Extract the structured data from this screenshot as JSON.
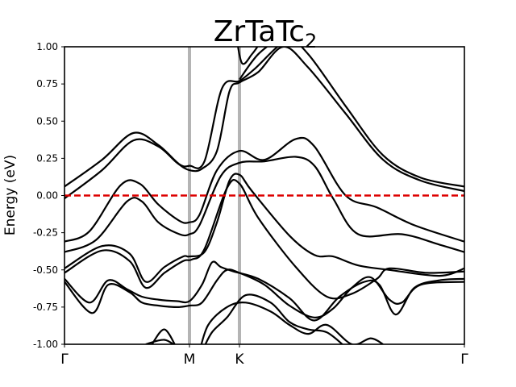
{
  "chart_data": {
    "type": "line",
    "title": "ZrTaTc",
    "title_subscript": "2",
    "ylabel": "Energy (eV)",
    "xlabel": "",
    "ylim": [
      -1.0,
      1.0
    ],
    "xlim": [
      0,
      3.2
    ],
    "yticks": [
      "-1.00",
      "-0.75",
      "-0.50",
      "-0.25",
      "0.00",
      "0.25",
      "0.50",
      "0.75",
      "1.00"
    ],
    "ytick_values": [
      -1.0,
      -0.75,
      -0.5,
      -0.25,
      0.0,
      0.25,
      0.5,
      0.75,
      1.0
    ],
    "kpoints": [
      {
        "label": "Γ",
        "x": 0.0
      },
      {
        "label": "M",
        "x": 1.0
      },
      {
        "label": "K",
        "x": 1.4
      },
      {
        "label": "Γ",
        "x": 3.2
      }
    ],
    "fermi_level": 0.0,
    "grid": false,
    "colors": {
      "bands": "#000000",
      "fermi": "#dd0000",
      "kline": "#b4b4b4"
    },
    "series": [
      {
        "values": [
          [
            0,
            0.06
          ],
          [
            0.3,
            0.24
          ],
          [
            0.55,
            0.42
          ],
          [
            0.75,
            0.34
          ],
          [
            0.92,
            0.21
          ],
          [
            1.0,
            0.2
          ],
          [
            1.12,
            0.23
          ],
          [
            1.26,
            0.72
          ],
          [
            1.4,
            0.77
          ],
          [
            1.52,
            0.85
          ],
          [
            1.78,
            1.04
          ],
          [
            1.95,
            0.95
          ],
          [
            2.25,
            0.6
          ],
          [
            2.55,
            0.27
          ],
          [
            2.85,
            0.12
          ],
          [
            3.2,
            0.06
          ]
        ]
      },
      {
        "values": [
          [
            0,
            -0.02
          ],
          [
            0.3,
            0.17
          ],
          [
            0.55,
            0.37
          ],
          [
            0.75,
            0.33
          ],
          [
            0.9,
            0.22
          ],
          [
            1.0,
            0.17
          ],
          [
            1.1,
            0.18
          ],
          [
            1.22,
            0.3
          ],
          [
            1.32,
            0.7
          ],
          [
            1.4,
            0.76
          ],
          [
            1.55,
            0.83
          ],
          [
            1.75,
            1.0
          ],
          [
            1.95,
            0.86
          ],
          [
            2.25,
            0.55
          ],
          [
            2.55,
            0.24
          ],
          [
            2.85,
            0.1
          ],
          [
            3.2,
            0.03
          ]
        ]
      },
      {
        "values": [
          [
            1.4,
            0.78
          ],
          [
            1.55,
            0.95
          ],
          [
            1.75,
            1.08
          ]
        ]
      },
      {
        "values": [
          [
            1.37,
            1.1
          ],
          [
            1.42,
            0.89
          ],
          [
            1.5,
            0.95
          ],
          [
            1.56,
            1.02
          ]
        ]
      },
      {
        "values": [
          [
            0,
            -0.31
          ],
          [
            0.2,
            -0.24
          ],
          [
            0.45,
            0.07
          ],
          [
            0.6,
            0.08
          ],
          [
            0.75,
            -0.06
          ],
          [
            0.92,
            -0.17
          ],
          [
            1.0,
            -0.18
          ],
          [
            1.08,
            -0.13
          ],
          [
            1.22,
            0.17
          ],
          [
            1.4,
            0.3
          ],
          [
            1.6,
            0.24
          ],
          [
            1.85,
            0.38
          ],
          [
            2.0,
            0.33
          ],
          [
            2.25,
            0.0
          ],
          [
            2.5,
            -0.08
          ],
          [
            2.8,
            -0.2
          ],
          [
            3.2,
            -0.31
          ]
        ]
      },
      {
        "values": [
          [
            0,
            -0.38
          ],
          [
            0.25,
            -0.3
          ],
          [
            0.5,
            -0.04
          ],
          [
            0.62,
            -0.04
          ],
          [
            0.75,
            -0.18
          ],
          [
            0.92,
            -0.26
          ],
          [
            1.0,
            -0.26
          ],
          [
            1.08,
            -0.2
          ],
          [
            1.25,
            0.13
          ],
          [
            1.4,
            0.22
          ],
          [
            1.6,
            0.23
          ],
          [
            1.85,
            0.26
          ],
          [
            2.0,
            0.2
          ],
          [
            2.15,
            -0.02
          ],
          [
            2.35,
            -0.26
          ],
          [
            2.7,
            -0.26
          ],
          [
            3.0,
            -0.33
          ],
          [
            3.2,
            -0.38
          ]
        ]
      },
      {
        "values": [
          [
            0,
            -0.49
          ],
          [
            0.3,
            -0.34
          ],
          [
            0.52,
            -0.39
          ],
          [
            0.65,
            -0.58
          ],
          [
            0.8,
            -0.48
          ],
          [
            0.95,
            -0.41
          ],
          [
            1.0,
            -0.41
          ],
          [
            1.12,
            -0.38
          ],
          [
            1.22,
            -0.18
          ],
          [
            1.32,
            0.1
          ],
          [
            1.4,
            0.14
          ],
          [
            1.5,
            0.03
          ],
          [
            1.8,
            -0.27
          ],
          [
            2.0,
            -0.4
          ],
          [
            2.15,
            -0.41
          ],
          [
            2.35,
            -0.47
          ],
          [
            2.6,
            -0.5
          ],
          [
            3.0,
            -0.54
          ],
          [
            3.2,
            -0.49
          ]
        ]
      },
      {
        "values": [
          [
            0,
            -0.52
          ],
          [
            0.3,
            -0.37
          ],
          [
            0.52,
            -0.44
          ],
          [
            0.65,
            -0.62
          ],
          [
            0.8,
            -0.52
          ],
          [
            0.95,
            -0.44
          ],
          [
            1.02,
            -0.43
          ],
          [
            1.12,
            -0.36
          ],
          [
            1.3,
            0.05
          ],
          [
            1.4,
            0.08
          ],
          [
            1.55,
            -0.15
          ],
          [
            1.85,
            -0.48
          ],
          [
            2.1,
            -0.68
          ],
          [
            2.3,
            -0.66
          ],
          [
            2.5,
            -0.56
          ],
          [
            2.6,
            -0.49
          ],
          [
            2.9,
            -0.52
          ],
          [
            3.2,
            -0.51
          ]
        ]
      },
      {
        "values": [
          [
            0,
            -0.56
          ],
          [
            0.2,
            -0.72
          ],
          [
            0.35,
            -0.57
          ],
          [
            0.5,
            -0.63
          ],
          [
            0.62,
            -0.68
          ],
          [
            0.75,
            -0.7
          ],
          [
            0.9,
            -0.71
          ],
          [
            1.0,
            -0.71
          ],
          [
            1.1,
            -0.6
          ],
          [
            1.18,
            -0.45
          ],
          [
            1.25,
            -0.48
          ],
          [
            1.35,
            -0.51
          ],
          [
            1.55,
            -0.56
          ],
          [
            1.8,
            -0.69
          ],
          [
            2.0,
            -0.84
          ],
          [
            2.2,
            -0.68
          ],
          [
            2.4,
            -0.58
          ],
          [
            2.52,
            -0.6
          ],
          [
            2.65,
            -0.8
          ],
          [
            2.8,
            -0.62
          ],
          [
            3.0,
            -0.57
          ],
          [
            3.2,
            -0.56
          ]
        ]
      },
      {
        "values": [
          [
            0,
            -0.58
          ],
          [
            0.22,
            -0.79
          ],
          [
            0.35,
            -0.6
          ],
          [
            0.52,
            -0.65
          ],
          [
            0.62,
            -0.72
          ],
          [
            0.75,
            -0.74
          ],
          [
            0.9,
            -0.75
          ],
          [
            1.0,
            -0.74
          ],
          [
            1.1,
            -0.72
          ],
          [
            1.22,
            -0.57
          ],
          [
            1.3,
            -0.5
          ],
          [
            1.4,
            -0.52
          ],
          [
            1.6,
            -0.6
          ],
          [
            1.8,
            -0.74
          ],
          [
            2.0,
            -0.82
          ],
          [
            2.15,
            -0.76
          ],
          [
            2.3,
            -0.62
          ],
          [
            2.45,
            -0.55
          ],
          [
            2.6,
            -0.7
          ],
          [
            2.7,
            -0.72
          ],
          [
            2.85,
            -0.6
          ],
          [
            3.2,
            -0.58
          ]
        ]
      },
      {
        "values": [
          [
            0.65,
            -1.0
          ],
          [
            0.8,
            -0.97
          ],
          [
            0.9,
            -1.02
          ]
        ]
      },
      {
        "values": [
          [
            0.7,
            -1.0
          ],
          [
            0.8,
            -0.9
          ],
          [
            0.9,
            -1.03
          ]
        ]
      },
      {
        "values": [
          [
            1.08,
            -1.05
          ],
          [
            1.15,
            -0.87
          ],
          [
            1.3,
            -0.75
          ],
          [
            1.45,
            -0.72
          ],
          [
            1.65,
            -0.78
          ],
          [
            1.8,
            -0.87
          ],
          [
            1.95,
            -0.93
          ],
          [
            2.1,
            -0.87
          ],
          [
            2.3,
            -1.0
          ],
          [
            2.45,
            -0.96
          ],
          [
            2.55,
            -1.0
          ]
        ]
      },
      {
        "values": [
          [
            1.1,
            -1.05
          ],
          [
            1.18,
            -0.92
          ],
          [
            1.3,
            -0.82
          ],
          [
            1.45,
            -0.67
          ],
          [
            1.65,
            -0.72
          ],
          [
            1.8,
            -0.85
          ],
          [
            1.95,
            -0.9
          ],
          [
            2.1,
            -0.92
          ],
          [
            2.25,
            -1.02
          ]
        ]
      }
    ]
  }
}
